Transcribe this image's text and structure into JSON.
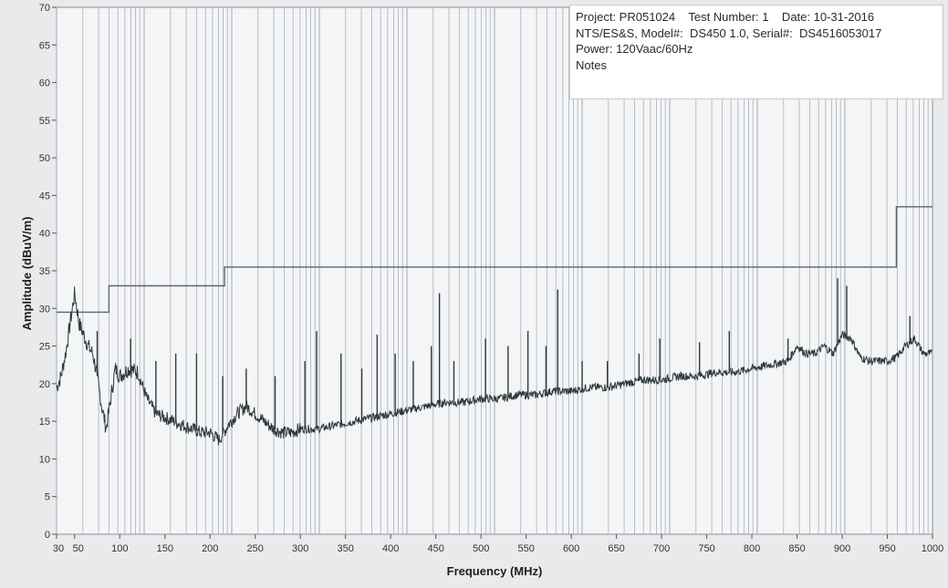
{
  "header": {
    "line1": "Project: PR051024    Test Number: 1    Date: 10-31-2016",
    "line2": "NTS/ES&S, Model#:  DS450 1.0, Serial#:  DS4516053017",
    "line3": "Power: 120Vaac/60Hz",
    "line4": "Notes"
  },
  "chart_data": {
    "type": "line",
    "title": "",
    "xlabel": "Frequency (MHz)",
    "ylabel": "Amplitude (dBuV/m)",
    "xlim": [
      30,
      1000
    ],
    "ylim": [
      0,
      70
    ],
    "xticks": [
      30,
      50,
      100,
      150,
      200,
      250,
      300,
      350,
      400,
      450,
      500,
      550,
      600,
      650,
      700,
      750,
      800,
      850,
      900,
      950,
      1000
    ],
    "yticks": [
      0,
      5,
      10,
      15,
      20,
      25,
      30,
      35,
      40,
      45,
      50,
      55,
      60,
      65,
      70
    ],
    "grid": "vertical-log-style",
    "colors": {
      "trace": "#2d3a3a",
      "limit": "#5a6570",
      "grid": "#a9b0b8",
      "plot_bg": "#f4f5f7"
    },
    "series": [
      {
        "x": [
          30,
          35,
          40,
          45,
          50,
          55,
          60,
          65,
          70,
          75,
          80,
          85,
          90,
          95,
          100,
          110,
          120,
          130,
          140,
          150,
          160,
          170,
          180,
          190,
          200,
          210,
          220,
          230,
          240,
          250,
          260,
          270,
          280,
          290,
          300,
          320,
          340,
          360,
          380,
          400,
          420,
          440,
          460,
          480,
          500,
          520,
          540,
          560,
          580,
          600,
          620,
          640,
          660,
          680,
          700,
          720,
          740,
          760,
          780,
          800,
          820,
          840,
          850,
          860,
          870,
          880,
          890,
          900,
          910,
          920,
          930,
          940,
          950,
          960,
          970,
          980,
          990,
          1000
        ],
        "values": [
          19.5,
          21,
          24,
          28,
          32,
          28,
          26.5,
          25,
          24,
          21,
          17,
          14,
          18,
          22,
          21,
          22,
          21.5,
          18,
          16,
          15.5,
          15,
          14.5,
          14,
          13.5,
          13.5,
          12.5,
          14.5,
          16,
          17,
          16,
          15,
          14,
          13.5,
          13.5,
          14,
          14,
          14.5,
          15,
          15.5,
          16,
          16.5,
          17,
          17.5,
          17.5,
          18,
          18,
          18.5,
          18.5,
          19,
          19,
          19.5,
          19.5,
          20,
          20.5,
          20.5,
          21,
          21,
          21.5,
          21.5,
          22,
          22.5,
          23,
          25,
          24,
          24,
          25,
          24,
          26.5,
          26,
          23.5,
          23,
          23,
          23,
          23.5,
          25,
          26,
          24,
          24
        ]
      }
    ],
    "spikes": [
      {
        "x": 75,
        "y": 27
      },
      {
        "x": 112,
        "y": 26
      },
      {
        "x": 140,
        "y": 23
      },
      {
        "x": 162,
        "y": 24
      },
      {
        "x": 185,
        "y": 24
      },
      {
        "x": 214,
        "y": 21
      },
      {
        "x": 240,
        "y": 22
      },
      {
        "x": 272,
        "y": 21
      },
      {
        "x": 305,
        "y": 23
      },
      {
        "x": 318,
        "y": 27
      },
      {
        "x": 345,
        "y": 24
      },
      {
        "x": 368,
        "y": 22
      },
      {
        "x": 385,
        "y": 26.5
      },
      {
        "x": 405,
        "y": 24
      },
      {
        "x": 425,
        "y": 23
      },
      {
        "x": 445,
        "y": 25
      },
      {
        "x": 454,
        "y": 32
      },
      {
        "x": 470,
        "y": 23
      },
      {
        "x": 505,
        "y": 26
      },
      {
        "x": 530,
        "y": 25
      },
      {
        "x": 552,
        "y": 27
      },
      {
        "x": 572,
        "y": 25
      },
      {
        "x": 585,
        "y": 32.5
      },
      {
        "x": 612,
        "y": 23
      },
      {
        "x": 640,
        "y": 23
      },
      {
        "x": 675,
        "y": 24
      },
      {
        "x": 698,
        "y": 26
      },
      {
        "x": 742,
        "y": 25.5
      },
      {
        "x": 775,
        "y": 27
      },
      {
        "x": 840,
        "y": 26
      },
      {
        "x": 895,
        "y": 34
      },
      {
        "x": 905,
        "y": 33
      },
      {
        "x": 975,
        "y": 29
      }
    ],
    "limit_line": [
      {
        "x": 30,
        "y": 29.5
      },
      {
        "x": 88,
        "y": 29.5
      },
      {
        "x": 88,
        "y": 33
      },
      {
        "x": 216,
        "y": 33
      },
      {
        "x": 216,
        "y": 35.5
      },
      {
        "x": 960,
        "y": 35.5
      },
      {
        "x": 960,
        "y": 43.5
      },
      {
        "x": 1000,
        "y": 43.5
      }
    ]
  }
}
